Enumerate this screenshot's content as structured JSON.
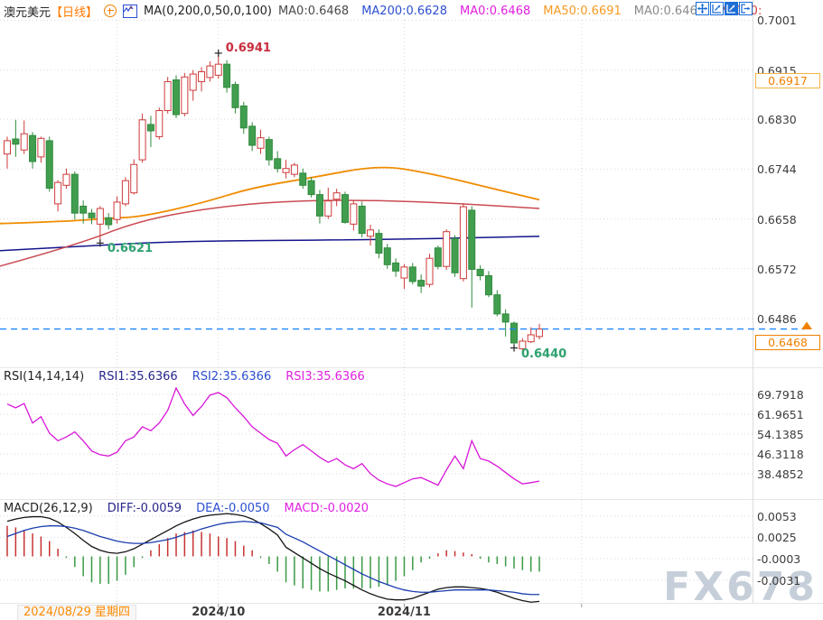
{
  "header": {
    "symbol": "澳元美元",
    "period": "【日线】",
    "ma_settings": "MA(0,200,0,50,0,100)",
    "ma_values": [
      {
        "label": "MA0:0.6468",
        "color": "#4a4a4a"
      },
      {
        "label": "MA200:0.6628",
        "color": "#2d4fd0"
      },
      {
        "label": "MA0:0.6468",
        "color": "#e020e0"
      },
      {
        "label": "MA50:0.6691",
        "color": "#f59a23"
      },
      {
        "label": "MA0:0.6468",
        "color": "#8a8a8a"
      },
      {
        "label": "MA100:",
        "color": "#cc4444"
      }
    ],
    "toolbar_icons": [
      "pan-icon",
      "axis-zoom-icon",
      "axis-scale-icon",
      "exit-icon"
    ],
    "accent_color": "#1d6ed6"
  },
  "rsi_header": {
    "title": "RSI(14,14,14)",
    "items": [
      {
        "label": "RSI1:35.6366",
        "color": "#26268c"
      },
      {
        "label": "RSI2:35.6366",
        "color": "#2d4fd0"
      },
      {
        "label": "RSI3:35.6366",
        "color": "#e020e0"
      }
    ]
  },
  "macd_header": {
    "title": "MACD(26,12,9)",
    "items": [
      {
        "label": "DIFF:-0.0059",
        "color": "#26268c"
      },
      {
        "label": "DEA:-0.0050",
        "color": "#2d4fd0"
      },
      {
        "label": "MACD:-0.0020",
        "color": "#e020e0"
      }
    ]
  },
  "x_axis": {
    "first_label": "2024/08/29 星期四",
    "first_label_color": "#ff8a00",
    "labels": [
      {
        "text": "2024/10",
        "index": 25
      },
      {
        "text": "2024/11",
        "index": 47
      }
    ],
    "extra_gridlines": [
      13,
      68
    ]
  },
  "price_tags": {
    "upper": {
      "text": "0.6917"
    },
    "current": {
      "text": "0.6468"
    },
    "color": "#f08000"
  },
  "annotations": [
    {
      "text": "0.6941",
      "price": 0.6941,
      "index": 25,
      "color": "#cb2f3f",
      "type": "high"
    },
    {
      "text": "0.6621",
      "price": 0.6621,
      "index": 11,
      "color": "#2ea36f",
      "type": "low"
    },
    {
      "text": "0.6440",
      "price": 0.644,
      "index": 60,
      "color": "#2ea36f",
      "type": "low"
    }
  ],
  "watermark": "FX678",
  "chart_data": {
    "type": "candlestick",
    "panes": {
      "main": {
        "yticks": [
          0.7001,
          0.6915,
          0.683,
          0.6744,
          0.6658,
          0.6572,
          0.6486
        ],
        "current_price": 0.6468
      },
      "rsi": {
        "yticks": [
          69.7918,
          61.9651,
          54.1385,
          46.3118,
          38.4852
        ]
      },
      "macd": {
        "yticks": [
          0.0053,
          0.0025,
          -0.0003,
          -0.0031
        ]
      }
    },
    "colors": {
      "up": "#cf3a3a",
      "down_fill": "#429e4f",
      "down_stroke": "#2f8a3c",
      "grid": "#d9d9d9",
      "dashed_line": "#1e86ff",
      "ma50": "#f08c00",
      "ma100": "#c94b52",
      "ma200": "#14148c",
      "rsi": "#d816d8",
      "diff": "#141414",
      "dea": "#1a3cae",
      "hist_up": "#c73232",
      "hist_down": "#3a9a46"
    },
    "candles": [
      [
        0.677,
        0.68,
        0.6745,
        0.6793
      ],
      [
        0.6796,
        0.6829,
        0.6765,
        0.6787
      ],
      [
        0.6777,
        0.6828,
        0.677,
        0.6805
      ],
      [
        0.6802,
        0.6808,
        0.6745,
        0.6757
      ],
      [
        0.6765,
        0.68,
        0.6755,
        0.6797
      ],
      [
        0.6793,
        0.68,
        0.6705,
        0.6711
      ],
      [
        0.6684,
        0.6725,
        0.6671,
        0.6721
      ],
      [
        0.6716,
        0.6745,
        0.671,
        0.6735
      ],
      [
        0.6735,
        0.674,
        0.6657,
        0.6668
      ],
      [
        0.668,
        0.669,
        0.665,
        0.6668
      ],
      [
        0.6668,
        0.6675,
        0.6649,
        0.666
      ],
      [
        0.6649,
        0.668,
        0.6621,
        0.6676
      ],
      [
        0.666,
        0.6668,
        0.664,
        0.6648
      ],
      [
        0.6657,
        0.6697,
        0.665,
        0.6687
      ],
      [
        0.6684,
        0.673,
        0.668,
        0.6724
      ],
      [
        0.6703,
        0.6761,
        0.67,
        0.6752
      ],
      [
        0.676,
        0.684,
        0.6755,
        0.6829
      ],
      [
        0.6821,
        0.6836,
        0.6782,
        0.681
      ],
      [
        0.68,
        0.685,
        0.6795,
        0.6845
      ],
      [
        0.6845,
        0.6903,
        0.684,
        0.6895
      ],
      [
        0.6898,
        0.6906,
        0.6832,
        0.6838
      ],
      [
        0.684,
        0.691,
        0.6835,
        0.6903
      ],
      [
        0.688,
        0.6915,
        0.6862,
        0.6908
      ],
      [
        0.6895,
        0.692,
        0.6878,
        0.6912
      ],
      [
        0.6902,
        0.693,
        0.6895,
        0.6922
      ],
      [
        0.6906,
        0.6941,
        0.69,
        0.6925
      ],
      [
        0.6925,
        0.6932,
        0.6876,
        0.6885
      ],
      [
        0.689,
        0.6895,
        0.684,
        0.685
      ],
      [
        0.6853,
        0.686,
        0.6805,
        0.6815
      ],
      [
        0.6818,
        0.6825,
        0.6775,
        0.6785
      ],
      [
        0.678,
        0.6812,
        0.677,
        0.6798
      ],
      [
        0.6795,
        0.68,
        0.675,
        0.676
      ],
      [
        0.6762,
        0.6775,
        0.6738,
        0.6745
      ],
      [
        0.6738,
        0.676,
        0.6728,
        0.6745
      ],
      [
        0.6735,
        0.6755,
        0.673,
        0.6751
      ],
      [
        0.6737,
        0.6745,
        0.671,
        0.6716
      ],
      [
        0.6724,
        0.673,
        0.6695,
        0.67
      ],
      [
        0.67,
        0.6708,
        0.665,
        0.6663
      ],
      [
        0.6663,
        0.6712,
        0.6658,
        0.6689
      ],
      [
        0.6692,
        0.671,
        0.668,
        0.6703
      ],
      [
        0.67,
        0.6705,
        0.665,
        0.6652
      ],
      [
        0.6649,
        0.669,
        0.6638,
        0.6684
      ],
      [
        0.668,
        0.6688,
        0.6626,
        0.6633
      ],
      [
        0.6628,
        0.6648,
        0.6612,
        0.6639
      ],
      [
        0.6633,
        0.664,
        0.659,
        0.6599
      ],
      [
        0.6608,
        0.6615,
        0.6572,
        0.6579
      ],
      [
        0.6582,
        0.659,
        0.6558,
        0.6568
      ],
      [
        0.6556,
        0.658,
        0.6537,
        0.6575
      ],
      [
        0.6575,
        0.6582,
        0.6545,
        0.655
      ],
      [
        0.6552,
        0.6562,
        0.653,
        0.6542
      ],
      [
        0.6545,
        0.6598,
        0.654,
        0.659
      ],
      [
        0.6608,
        0.6612,
        0.6571,
        0.6576
      ],
      [
        0.6576,
        0.664,
        0.657,
        0.6636
      ],
      [
        0.6624,
        0.663,
        0.6558,
        0.6565
      ],
      [
        0.6555,
        0.6685,
        0.655,
        0.6679
      ],
      [
        0.6673,
        0.668,
        0.6505,
        0.6571
      ],
      [
        0.6571,
        0.6578,
        0.6552,
        0.656
      ],
      [
        0.656,
        0.6568,
        0.6523,
        0.6527
      ],
      [
        0.6527,
        0.6535,
        0.649,
        0.6494
      ],
      [
        0.6494,
        0.6502,
        0.6455,
        0.648
      ],
      [
        0.6478,
        0.6481,
        0.644,
        0.6444
      ],
      [
        0.6434,
        0.6452,
        0.643,
        0.6447
      ],
      [
        0.6446,
        0.6471,
        0.6444,
        0.6458
      ],
      [
        0.6455,
        0.6477,
        0.645,
        0.6468
      ]
    ],
    "ma50": {
      "points": [
        [
          -1,
          0.665
        ],
        [
          6,
          0.6653
        ],
        [
          12,
          0.6659
        ],
        [
          16,
          0.6662
        ],
        [
          23,
          0.6685
        ],
        [
          29,
          0.6712
        ],
        [
          36,
          0.6729
        ],
        [
          44,
          0.6751
        ],
        [
          50,
          0.6737
        ],
        [
          57,
          0.6712
        ],
        [
          63,
          0.6691
        ]
      ]
    },
    "ma100": {
      "points": [
        [
          -1,
          0.6576
        ],
        [
          8,
          0.6612
        ],
        [
          16,
          0.6657
        ],
        [
          26,
          0.6681
        ],
        [
          35,
          0.669
        ],
        [
          44,
          0.669
        ],
        [
          53,
          0.6685
        ],
        [
          63,
          0.6676
        ]
      ]
    },
    "ma200": {
      "points": [
        [
          -1,
          0.6603
        ],
        [
          10,
          0.6612
        ],
        [
          21,
          0.662
        ],
        [
          44,
          0.6622
        ],
        [
          63,
          0.6628
        ]
      ]
    },
    "rsi": {
      "values": [
        66,
        64.5,
        66.2,
        58.5,
        61,
        54.5,
        51.5,
        53,
        55,
        51.5,
        47.5,
        46,
        45.5,
        47,
        51.5,
        53,
        57,
        55.5,
        58.5,
        63.5,
        72.3,
        66,
        61.5,
        65,
        69.5,
        70.5,
        68.5,
        64.5,
        61,
        57,
        54.5,
        52,
        50.5,
        45.5,
        48,
        50,
        47.5,
        45,
        43,
        44.5,
        42,
        40.5,
        42.5,
        38.5,
        36,
        34.5,
        33.5,
        35,
        36.5,
        37,
        35.5,
        34,
        40,
        45.5,
        40.5,
        51.5,
        44.5,
        43.5,
        41.5,
        39,
        36.5,
        34.5,
        35,
        35.6
      ]
    },
    "macd": {
      "diff": [
        0.0046,
        0.0049,
        0.0051,
        0.0052,
        0.0052,
        0.005,
        0.0045,
        0.0038,
        0.003,
        0.0021,
        0.0013,
        0.0008,
        0.0005,
        0.0004,
        0.0006,
        0.001,
        0.0016,
        0.0022,
        0.0028,
        0.0034,
        0.004,
        0.0045,
        0.0049,
        0.0052,
        0.0054,
        0.0055,
        0.0056,
        0.0055,
        0.0053,
        0.0049,
        0.0043,
        0.0036,
        0.0028,
        0.0012,
        0.0005,
        -0.0002,
        -0.0009,
        -0.0016,
        -0.0022,
        -0.0027,
        -0.0032,
        -0.0038,
        -0.0044,
        -0.0049,
        -0.0053,
        -0.0056,
        -0.0057,
        -0.0057,
        -0.0055,
        -0.0051,
        -0.0047,
        -0.0043,
        -0.0041,
        -0.004,
        -0.004,
        -0.0041,
        -0.0042,
        -0.0044,
        -0.0047,
        -0.0051,
        -0.0055,
        -0.0058,
        -0.006,
        -0.0059
      ],
      "dea": [
        0.0026,
        0.003,
        0.0034,
        0.0037,
        0.0039,
        0.004,
        0.004,
        0.0039,
        0.0037,
        0.0034,
        0.003,
        0.0026,
        0.0023,
        0.002,
        0.0018,
        0.0017,
        0.0017,
        0.0018,
        0.002,
        0.0022,
        0.0025,
        0.0029,
        0.0032,
        0.0036,
        0.0039,
        0.0042,
        0.0044,
        0.0045,
        0.0046,
        0.0045,
        0.0044,
        0.0041,
        0.0038,
        0.0029,
        0.0024,
        0.0019,
        0.0013,
        0.0007,
        0.0001,
        -0.0005,
        -0.0011,
        -0.0017,
        -0.0023,
        -0.0028,
        -0.0033,
        -0.0037,
        -0.0041,
        -0.0044,
        -0.0046,
        -0.0047,
        -0.0047,
        -0.0046,
        -0.0045,
        -0.0044,
        -0.0044,
        -0.0044,
        -0.0044,
        -0.0044,
        -0.0045,
        -0.0046,
        -0.0047,
        -0.0049,
        -0.005,
        -0.005
      ],
      "hist": [
        0.004,
        0.0038,
        0.0034,
        0.003,
        0.0026,
        0.002,
        0.001,
        -0.0002,
        -0.0014,
        -0.0026,
        -0.0034,
        -0.0036,
        -0.0036,
        -0.0032,
        -0.0024,
        -0.0014,
        -0.0002,
        0.0008,
        0.0016,
        0.0024,
        0.003,
        0.0032,
        0.0034,
        0.0032,
        0.003,
        0.0026,
        0.0024,
        0.002,
        0.0014,
        0.0008,
        -0.0002,
        -0.001,
        -0.002,
        -0.0034,
        -0.0038,
        -0.0042,
        -0.0044,
        -0.0046,
        -0.0046,
        -0.0044,
        -0.0042,
        -0.0042,
        -0.0042,
        -0.0042,
        -0.004,
        -0.0038,
        -0.0032,
        -0.0026,
        -0.0018,
        -0.0008,
        -0.0003,
        0.0004,
        0.0008,
        0.0007,
        0.0005,
        0.0003,
        -0.0003,
        -0.0008,
        -0.001,
        -0.0013,
        -0.0016,
        -0.0018,
        -0.002,
        -0.002
      ]
    }
  }
}
